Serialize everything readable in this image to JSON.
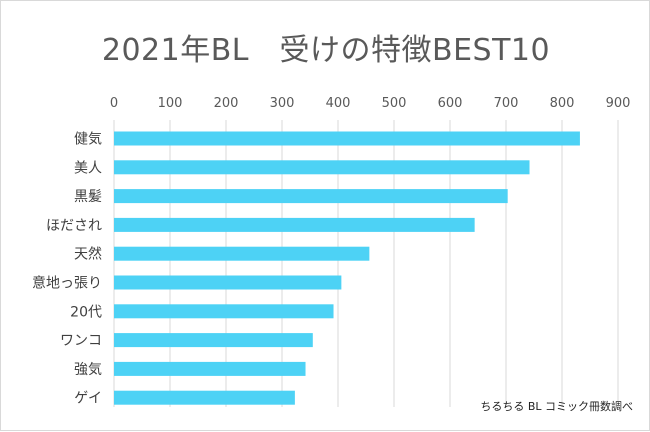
{
  "chart_data": {
    "type": "bar",
    "orientation": "horizontal",
    "title": "2021年BL　受けの特徴BEST10",
    "categories": [
      "健気",
      "美人",
      "黒髪",
      "ほだされ",
      "天然",
      "意地っ張り",
      "20代",
      "ワンコ",
      "強気",
      "ゲイ"
    ],
    "values": [
      832,
      742,
      703,
      644,
      456,
      406,
      392,
      355,
      342,
      323
    ],
    "xlim": [
      0,
      900
    ],
    "xticks": [
      "0",
      "100",
      "200",
      "300",
      "400",
      "500",
      "600",
      "700",
      "800",
      "900"
    ],
    "axis_position": "top",
    "grid": true,
    "bar_color": "#4dd2f5",
    "source_note": "ちるちる BL コミック冊数調べ"
  }
}
